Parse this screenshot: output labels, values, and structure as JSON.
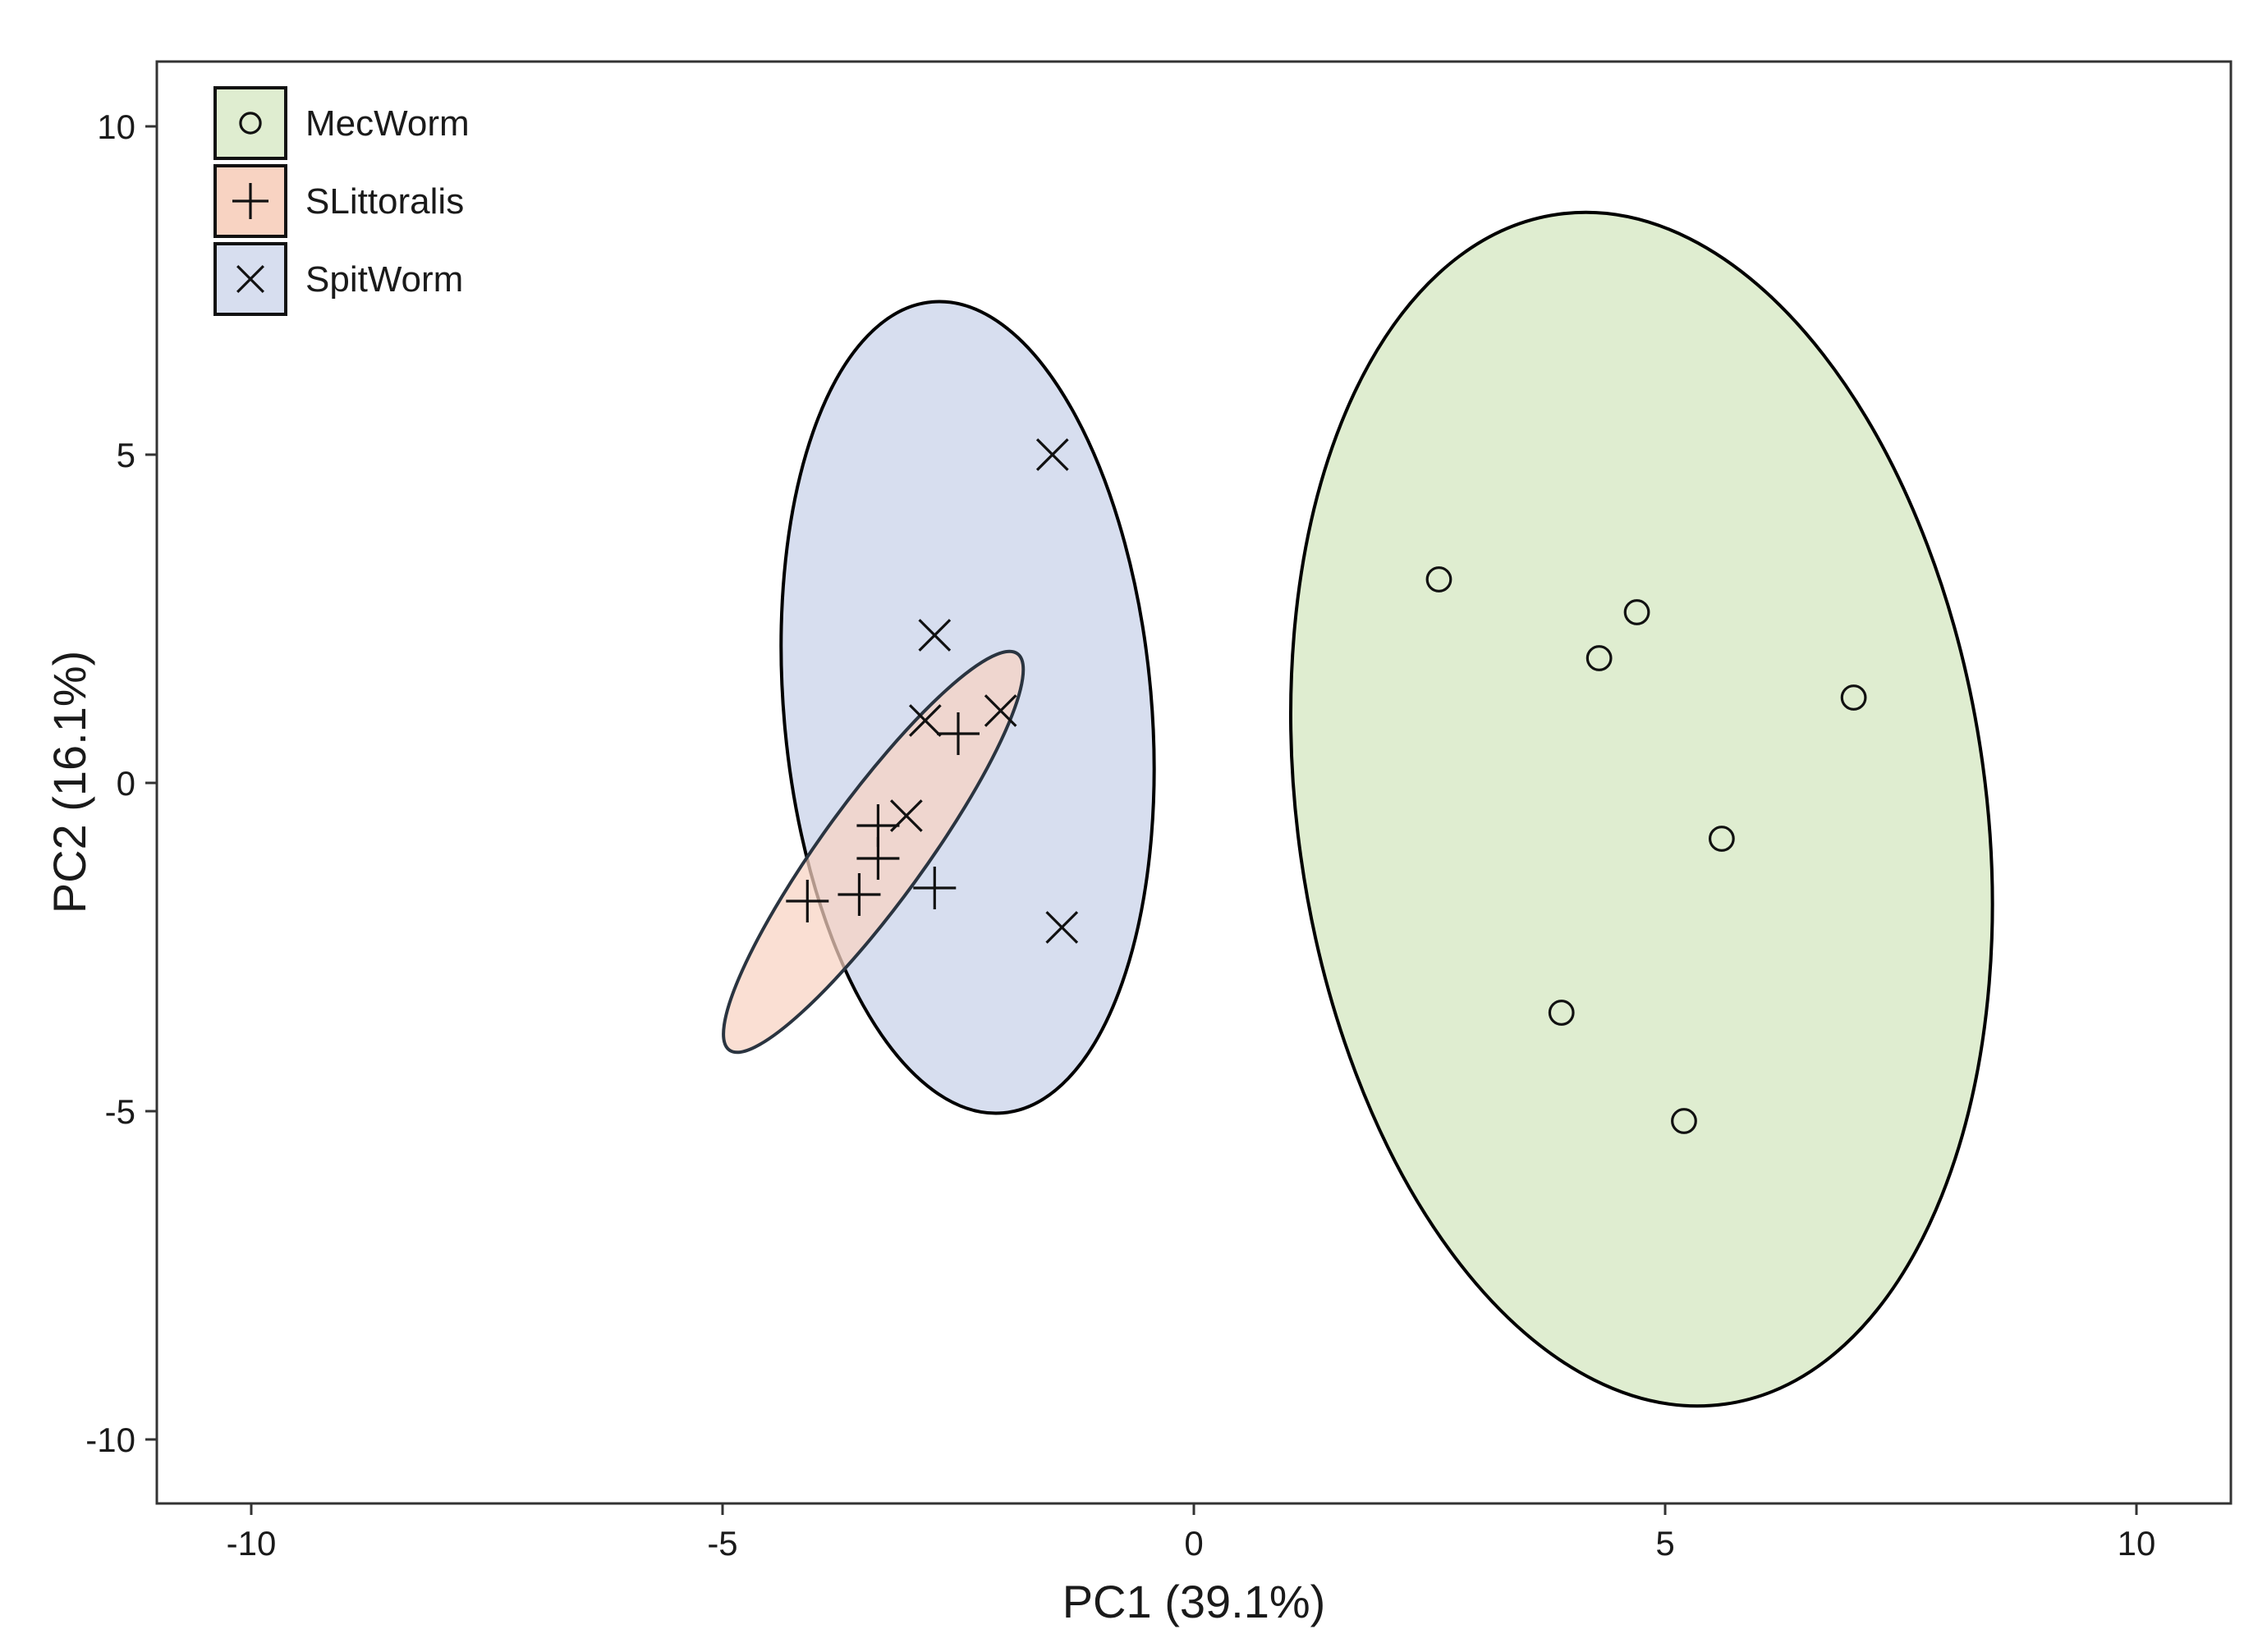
{
  "chart_data": {
    "type": "scatter",
    "xlabel": "PC1 (39.1%)",
    "ylabel": "PC2 (16.1%)",
    "xlim": [
      -11,
      11
    ],
    "ylim": [
      -11,
      11
    ],
    "xticks": [
      -10,
      -5,
      0,
      5,
      10
    ],
    "yticks": [
      -10,
      -5,
      0,
      5,
      10
    ],
    "xtick_labels": [
      "-10",
      "-5",
      "0",
      "5",
      "10"
    ],
    "ytick_labels": [
      "-10",
      "-5",
      "0",
      "5",
      "10"
    ],
    "grid": false,
    "legend_position": "top-left",
    "series": [
      {
        "name": "MecWorm",
        "marker": "circle",
        "fill": "#dfedd0",
        "points": [
          [
            2.6,
            3.1
          ],
          [
            4.7,
            2.6
          ],
          [
            4.3,
            1.9
          ],
          [
            7.0,
            1.3
          ],
          [
            5.6,
            -0.85
          ],
          [
            3.9,
            -3.5
          ],
          [
            5.2,
            -5.15
          ]
        ],
        "ellipse": {
          "center": [
            4.75,
            -0.4
          ],
          "semi_axes": [
            3.65,
            9.15
          ],
          "angle_deg": 8,
          "stroke": "#000000"
        }
      },
      {
        "name": "SLittoralis",
        "marker": "plus",
        "fill": "#f8d3c2",
        "points": [
          [
            -4.1,
            -1.8
          ],
          [
            -3.55,
            -1.7
          ],
          [
            -3.35,
            -1.15
          ],
          [
            -3.35,
            -0.65
          ],
          [
            -2.75,
            -1.6
          ],
          [
            -2.5,
            0.75
          ]
        ],
        "ellipse": {
          "center": [
            -3.4,
            -1.05
          ],
          "semi_axes": [
            2.6,
            0.78
          ],
          "angle_deg": 54,
          "stroke": "#2a3440"
        }
      },
      {
        "name": "SpitWorm",
        "marker": "cross",
        "fill": "#d7deef",
        "points": [
          [
            -1.5,
            5.0
          ],
          [
            -2.75,
            2.25
          ],
          [
            -2.85,
            0.95
          ],
          [
            -2.05,
            1.1
          ],
          [
            -3.05,
            -0.5
          ],
          [
            -1.4,
            -2.2
          ]
        ],
        "ellipse": {
          "center": [
            -2.4,
            1.15
          ],
          "semi_axes": [
            1.95,
            6.2
          ],
          "angle_deg": 5,
          "stroke": "#000000"
        }
      }
    ]
  }
}
